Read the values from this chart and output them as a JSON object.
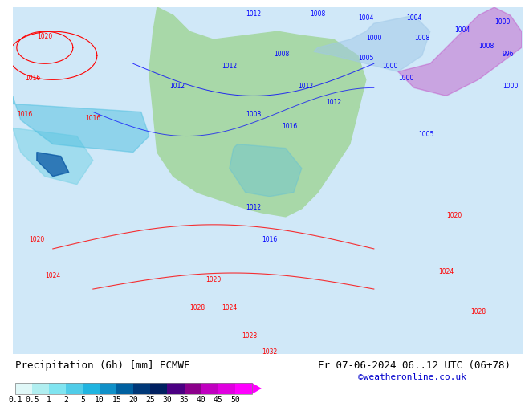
{
  "title": "Precipitation (6h) [mm] ECMWF",
  "date_str": "Fr 07-06-2024 06..12 UTC (06+78)",
  "credit": "©weatheronline.co.uk",
  "colorbar_values": [
    0.1,
    0.5,
    1,
    2,
    5,
    10,
    15,
    20,
    25,
    30,
    35,
    40,
    45,
    50
  ],
  "colorbar_colors": [
    "#e0f8f8",
    "#b0eef0",
    "#80e4f0",
    "#50cce8",
    "#20b4e0",
    "#1090c8",
    "#0060a0",
    "#003878",
    "#002060",
    "#4b0082",
    "#8b008b",
    "#c000c0",
    "#e000e0",
    "#ff00ff"
  ],
  "bg_color": "#ffffff",
  "map_bg": "#c8e8c8",
  "label_font_size": 9,
  "title_font_size": 9,
  "credit_font_size": 8,
  "colorbar_label_size": 7
}
